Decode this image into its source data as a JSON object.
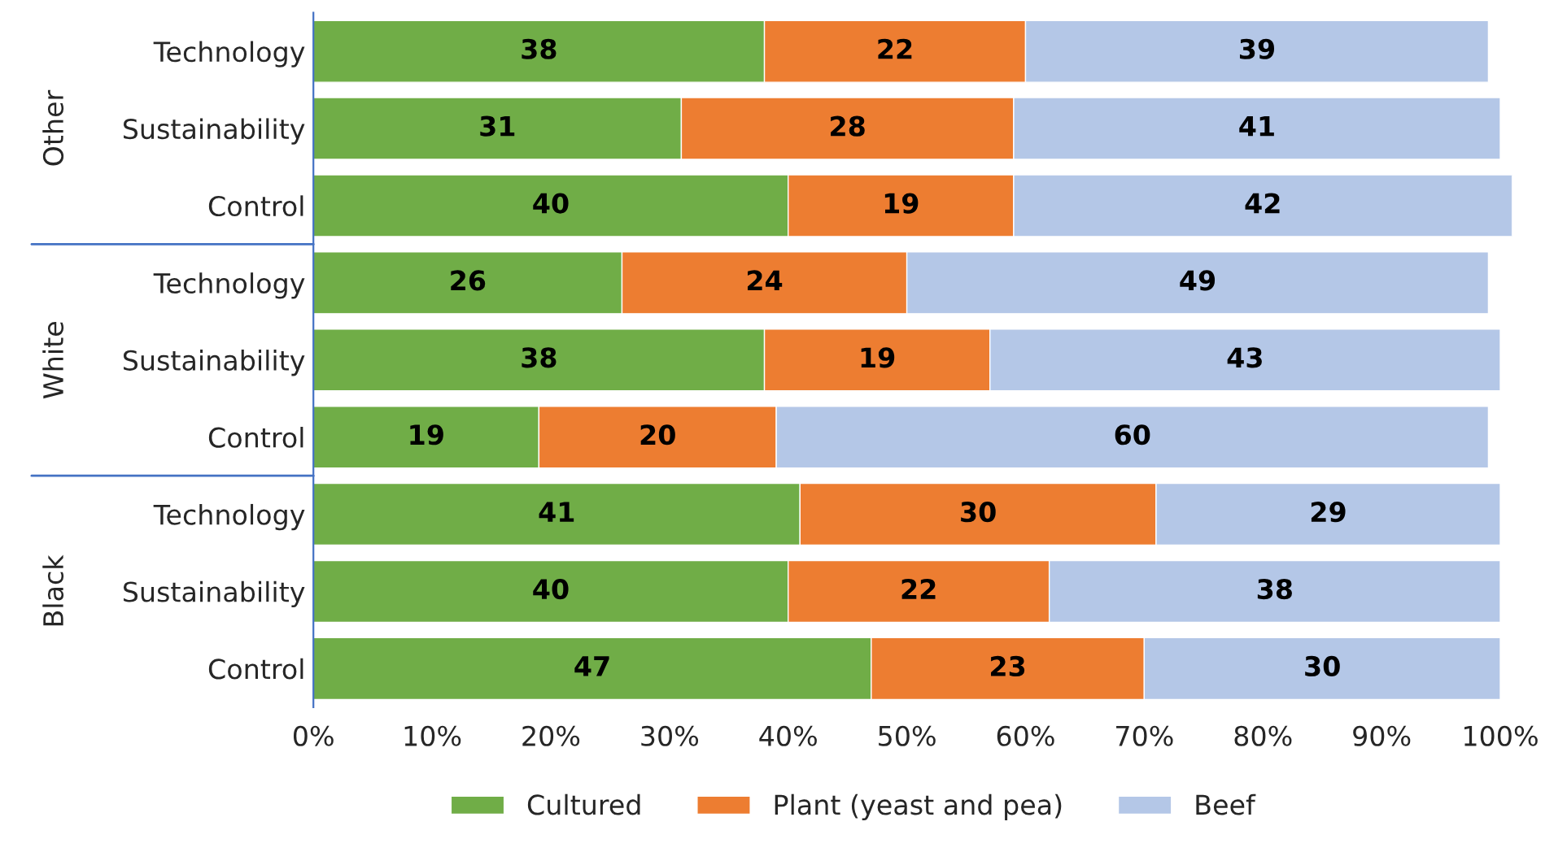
{
  "chart_data": {
    "type": "bar",
    "orientation": "horizontal",
    "stacked": true,
    "data_labels": true,
    "categories": [
      "Technology",
      "Sustainability",
      "Control",
      "Technology",
      "Sustainability",
      "Control",
      "Technology",
      "Sustainability",
      "Control"
    ],
    "series": [
      {
        "name": "Cultured",
        "color": "#70ad47",
        "values": [
          38,
          31,
          40,
          26,
          38,
          19,
          41,
          40,
          47
        ]
      },
      {
        "name": "Plant (yeast and pea)",
        "color": "#ed7d31",
        "values": [
          22,
          28,
          19,
          24,
          19,
          20,
          30,
          22,
          23
        ]
      },
      {
        "name": "Beef",
        "color": "#b4c7e7",
        "values": [
          39,
          41,
          42,
          49,
          43,
          60,
          29,
          38,
          30
        ]
      }
    ],
    "xlim": [
      0,
      101
    ],
    "xticks": [
      {
        "value": 0,
        "label": "0%"
      },
      {
        "value": 10,
        "label": "10%"
      },
      {
        "value": 20,
        "label": "20%"
      },
      {
        "value": 30,
        "label": "30%"
      },
      {
        "value": 40,
        "label": "40%"
      },
      {
        "value": 50,
        "label": "50%"
      },
      {
        "value": 60,
        "label": "60%"
      },
      {
        "value": 70,
        "label": "70%"
      },
      {
        "value": 80,
        "label": "80%"
      },
      {
        "value": 90,
        "label": "90%"
      },
      {
        "value": 100,
        "label": "100%"
      }
    ],
    "annotations": [
      "Other",
      "White",
      "Black"
    ],
    "grid": false,
    "legend": "bottom"
  }
}
